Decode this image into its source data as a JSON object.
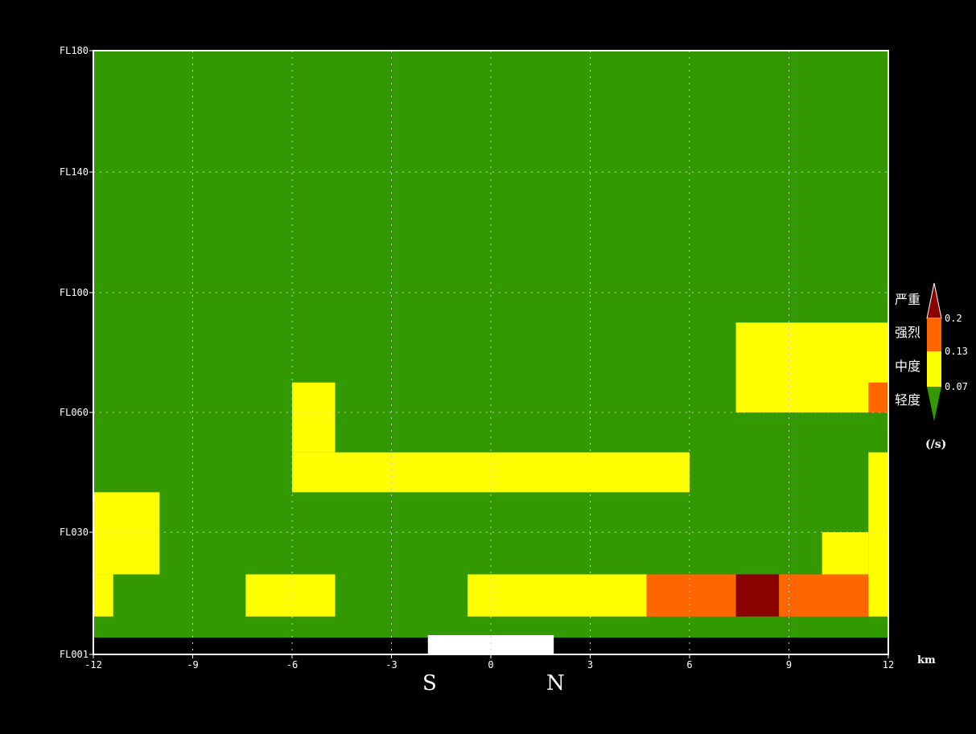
{
  "chart_data": {
    "type": "heatmap",
    "title": "",
    "xlabel": "",
    "ylabel": "",
    "x_unit": "km",
    "xlim": [
      -12,
      12
    ],
    "x_ticks": [
      -12,
      -9,
      -6,
      -3,
      0,
      3,
      6,
      9,
      12
    ],
    "x_tick_labels": [
      "-12",
      "-9",
      "-6",
      "-3",
      "0",
      "3",
      "6",
      "9",
      "12"
    ],
    "y_scale": "flight-level",
    "y_ticks": [
      1,
      30,
      60,
      100,
      140,
      180
    ],
    "y_tick_labels": [
      "FL001",
      "FL030",
      "FL060",
      "FL100",
      "FL140",
      "FL180"
    ],
    "grid": true,
    "background_value": "light",
    "levels": [
      "light",
      "moderate",
      "strong",
      "severe"
    ],
    "cells": [
      {
        "x0": -12,
        "x1": -10,
        "y0": 20,
        "y1": 40,
        "level": "moderate"
      },
      {
        "x0": -12,
        "x1": -11.4,
        "y0": 10,
        "y1": 20,
        "level": "moderate"
      },
      {
        "x0": -7.4,
        "x1": -4.7,
        "y0": 10,
        "y1": 20,
        "level": "moderate"
      },
      {
        "x0": -6,
        "x1": -4.7,
        "y0": 50,
        "y1": 70,
        "level": "moderate"
      },
      {
        "x0": -6,
        "x1": 6,
        "y0": 40,
        "y1": 50,
        "level": "moderate"
      },
      {
        "x0": -0.7,
        "x1": 4.7,
        "y0": 10,
        "y1": 20,
        "level": "moderate"
      },
      {
        "x0": 4.7,
        "x1": 7.4,
        "y0": 10,
        "y1": 20,
        "level": "strong"
      },
      {
        "x0": 7.4,
        "x1": 8.7,
        "y0": 10,
        "y1": 20,
        "level": "severe"
      },
      {
        "x0": 8.7,
        "x1": 11.4,
        "y0": 10,
        "y1": 20,
        "level": "strong"
      },
      {
        "x0": 11.4,
        "x1": 12,
        "y0": 10,
        "y1": 50,
        "level": "moderate"
      },
      {
        "x0": 10,
        "x1": 11.4,
        "y0": 20,
        "y1": 30,
        "level": "moderate"
      },
      {
        "x0": 7.4,
        "x1": 12,
        "y0": 60,
        "y1": 90,
        "level": "moderate"
      },
      {
        "x0": 11.4,
        "x1": 12,
        "y0": 60,
        "y1": 70,
        "level": "strong"
      }
    ],
    "terrain": {
      "y_top": 5,
      "label": "terrain"
    },
    "position_marker": {
      "x0": -1.9,
      "x1": 1.9
    },
    "direction_left": "S",
    "direction_right": "N"
  },
  "legend": {
    "unit": "(/s)",
    "items": [
      {
        "label": "严重",
        "color": "#8b0000",
        "level": "severe"
      },
      {
        "label": "强烈",
        "color": "#ff6600",
        "level": "strong"
      },
      {
        "label": "中度",
        "color": "#ffff00",
        "level": "moderate"
      },
      {
        "label": "轻度",
        "color": "#339900",
        "level": "light"
      }
    ],
    "thresholds": [
      "0.2",
      "0.13",
      "0.07"
    ]
  },
  "colors": {
    "background": "#000000",
    "light": "#339900",
    "moderate": "#ffff00",
    "strong": "#ff6600",
    "severe": "#8b0000",
    "frame": "#ffffff",
    "grid": "#cccccc"
  }
}
